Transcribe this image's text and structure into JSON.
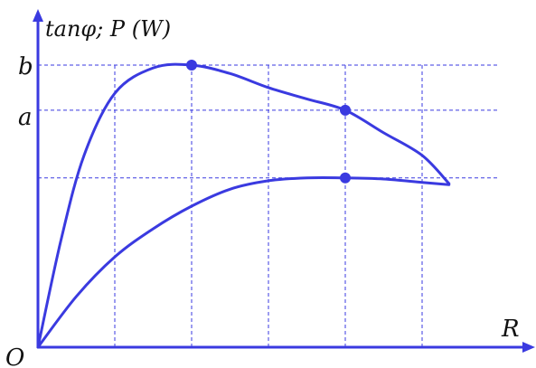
{
  "chart_data": {
    "type": "line",
    "ylabel": "tanφ; P (W)",
    "xlabel": "R",
    "origin_label": "O",
    "y_tick_labels": [
      {
        "value": 5,
        "label": "b"
      },
      {
        "value": 4.2,
        "label": "a"
      },
      {
        "value": 3,
        "label": ""
      }
    ],
    "x_grid": [
      1,
      2,
      3,
      4,
      5
    ],
    "xlim": [
      0,
      6.4
    ],
    "ylim": [
      0,
      6.8
    ],
    "grid": true,
    "series": [
      {
        "x": [
          0,
          0.3,
          0.6,
          1.0,
          1.5,
          2.0,
          2.5,
          3.0,
          3.5,
          4.0,
          4.5,
          5.0,
          5.35
        ],
        "y": [
          0,
          1.9,
          3.4,
          4.5,
          4.95,
          5.0,
          4.85,
          4.6,
          4.4,
          4.2,
          3.8,
          3.4,
          2.9
        ],
        "markers": [
          {
            "x": 2.0,
            "y": 5.0
          },
          {
            "x": 4.0,
            "y": 4.2
          }
        ]
      },
      {
        "x": [
          0,
          0.5,
          1.0,
          1.5,
          2.0,
          2.5,
          3.0,
          3.5,
          4.0,
          4.5,
          5.0,
          5.35
        ],
        "y": [
          0,
          0.9,
          1.6,
          2.1,
          2.5,
          2.8,
          2.95,
          3.0,
          3.0,
          2.98,
          2.92,
          2.88
        ],
        "markers": [
          {
            "x": 4.0,
            "y": 3.0
          }
        ]
      }
    ],
    "colors": {
      "line": "#3a3ae0",
      "text": "#111111"
    }
  }
}
